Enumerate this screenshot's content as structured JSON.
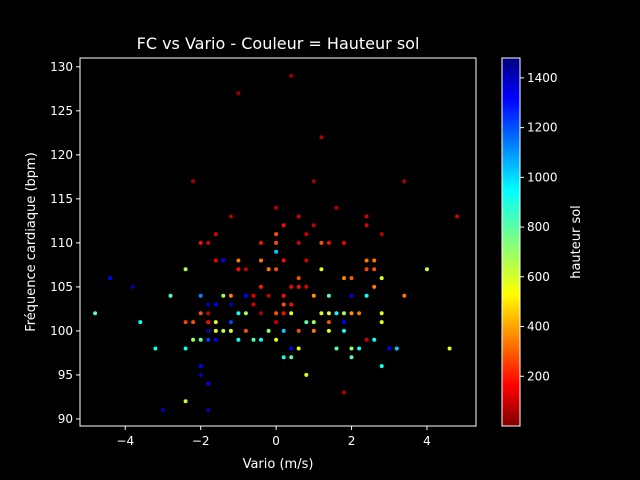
{
  "chart_data": {
    "type": "scatter",
    "title": "FC vs Vario - Couleur = Hauteur sol",
    "xlabel": "Vario (m/s)",
    "ylabel": "Fréquence cardiaque (bpm)",
    "colorbar_label": "hauteur sol",
    "colormap": "jet",
    "xlim": [
      -5.2,
      5.3
    ],
    "ylim": [
      89.2,
      131.0
    ],
    "clim": [
      0,
      1480
    ],
    "x_ticks": [
      -4,
      -2,
      0,
      2,
      4
    ],
    "x_tick_labels": [
      "−4",
      "−2",
      "0",
      "2",
      "4"
    ],
    "y_ticks": [
      90,
      95,
      100,
      105,
      110,
      115,
      120,
      125,
      130
    ],
    "y_tick_labels": [
      "90",
      "95",
      "100",
      "105",
      "110",
      "115",
      "120",
      "125",
      "130"
    ],
    "c_ticks": [
      200,
      400,
      600,
      800,
      1000,
      1200,
      1400
    ],
    "c_tick_labels": [
      "200",
      "400",
      "600",
      "800",
      "1000",
      "1200",
      "1400"
    ],
    "background": "#000000",
    "grid": false,
    "points": [
      {
        "x": 0.4,
        "y": 129,
        "c": 40
      },
      {
        "x": -1.0,
        "y": 127,
        "c": 40
      },
      {
        "x": 1.2,
        "y": 122,
        "c": 60
      },
      {
        "x": -2.2,
        "y": 117,
        "c": 60
      },
      {
        "x": 1.0,
        "y": 117,
        "c": 60
      },
      {
        "x": 3.4,
        "y": 117,
        "c": 60
      },
      {
        "x": 0.0,
        "y": 114,
        "c": 80
      },
      {
        "x": 1.6,
        "y": 114,
        "c": 80
      },
      {
        "x": -1.2,
        "y": 113,
        "c": 80
      },
      {
        "x": 0.6,
        "y": 113,
        "c": 120
      },
      {
        "x": 2.4,
        "y": 113,
        "c": 120
      },
      {
        "x": 4.8,
        "y": 113,
        "c": 120
      },
      {
        "x": 0.2,
        "y": 112,
        "c": 200
      },
      {
        "x": 1.0,
        "y": 112,
        "c": 100
      },
      {
        "x": 2.4,
        "y": 112,
        "c": 140
      },
      {
        "x": -1.6,
        "y": 111,
        "c": 120
      },
      {
        "x": 0.0,
        "y": 111,
        "c": 300
      },
      {
        "x": 0.8,
        "y": 111,
        "c": 100
      },
      {
        "x": 2.8,
        "y": 111,
        "c": 80
      },
      {
        "x": -2.0,
        "y": 110,
        "c": 200
      },
      {
        "x": -1.8,
        "y": 110,
        "c": 120
      },
      {
        "x": -0.4,
        "y": 110,
        "c": 200
      },
      {
        "x": 0.0,
        "y": 110,
        "c": 300
      },
      {
        "x": 0.6,
        "y": 110,
        "c": 120
      },
      {
        "x": 1.2,
        "y": 110,
        "c": 300
      },
      {
        "x": 1.4,
        "y": 110,
        "c": 200
      },
      {
        "x": 1.8,
        "y": 110,
        "c": 160
      },
      {
        "x": 0.0,
        "y": 109,
        "c": 1000
      },
      {
        "x": -1.0,
        "y": 108,
        "c": 360
      },
      {
        "x": -0.4,
        "y": 108,
        "c": 360
      },
      {
        "x": 0.2,
        "y": 108,
        "c": 200
      },
      {
        "x": 0.8,
        "y": 108,
        "c": 120
      },
      {
        "x": 2.4,
        "y": 108,
        "c": 360
      },
      {
        "x": 2.6,
        "y": 108,
        "c": 360
      },
      {
        "x": -1.6,
        "y": 108,
        "c": 160
      },
      {
        "x": -1.4,
        "y": 108,
        "c": 1300
      },
      {
        "x": -2.4,
        "y": 107,
        "c": 680
      },
      {
        "x": -1.0,
        "y": 107,
        "c": 200
      },
      {
        "x": -0.8,
        "y": 107,
        "c": 100
      },
      {
        "x": -0.2,
        "y": 107,
        "c": 360
      },
      {
        "x": 0.0,
        "y": 107,
        "c": 300
      },
      {
        "x": 1.2,
        "y": 107,
        "c": 600
      },
      {
        "x": 2.4,
        "y": 107,
        "c": 280
      },
      {
        "x": 2.6,
        "y": 107,
        "c": 300
      },
      {
        "x": 4.0,
        "y": 107,
        "c": 640
      },
      {
        "x": -4.4,
        "y": 106,
        "c": 1300
      },
      {
        "x": 0.6,
        "y": 106,
        "c": 300
      },
      {
        "x": 1.8,
        "y": 106,
        "c": 380
      },
      {
        "x": 2.0,
        "y": 106,
        "c": 320
      },
      {
        "x": 2.8,
        "y": 106,
        "c": 600
      },
      {
        "x": -3.8,
        "y": 105,
        "c": 1400
      },
      {
        "x": -0.4,
        "y": 105,
        "c": 220
      },
      {
        "x": 0.4,
        "y": 105,
        "c": 180
      },
      {
        "x": 0.6,
        "y": 105,
        "c": 200
      },
      {
        "x": 0.8,
        "y": 105,
        "c": 140
      },
      {
        "x": 2.6,
        "y": 105,
        "c": 360
      },
      {
        "x": -2.8,
        "y": 104,
        "c": 800
      },
      {
        "x": -2.0,
        "y": 104,
        "c": 1100
      },
      {
        "x": -1.4,
        "y": 104,
        "c": 700
      },
      {
        "x": -1.2,
        "y": 104,
        "c": 360
      },
      {
        "x": -0.8,
        "y": 104,
        "c": 1300
      },
      {
        "x": -0.6,
        "y": 104,
        "c": 160
      },
      {
        "x": -0.2,
        "y": 104,
        "c": 100
      },
      {
        "x": 0.2,
        "y": 104,
        "c": 200
      },
      {
        "x": 1.0,
        "y": 104,
        "c": 400
      },
      {
        "x": 1.4,
        "y": 104,
        "c": 800
      },
      {
        "x": 2.0,
        "y": 104,
        "c": 1300
      },
      {
        "x": 2.4,
        "y": 104,
        "c": 900
      },
      {
        "x": 3.4,
        "y": 104,
        "c": 360
      },
      {
        "x": -1.8,
        "y": 103,
        "c": 1400
      },
      {
        "x": -1.6,
        "y": 103,
        "c": 1300
      },
      {
        "x": -1.2,
        "y": 103,
        "c": 1400
      },
      {
        "x": -0.6,
        "y": 103,
        "c": 120
      },
      {
        "x": 0.2,
        "y": 103,
        "c": 300
      },
      {
        "x": 0.4,
        "y": 103,
        "c": 200
      },
      {
        "x": -4.8,
        "y": 102,
        "c": 800
      },
      {
        "x": -2.0,
        "y": 102,
        "c": 300
      },
      {
        "x": -1.8,
        "y": 102,
        "c": 100
      },
      {
        "x": -1.0,
        "y": 102,
        "c": 900
      },
      {
        "x": -0.8,
        "y": 102,
        "c": 700
      },
      {
        "x": -0.4,
        "y": 102,
        "c": 60
      },
      {
        "x": 0.0,
        "y": 102,
        "c": 300
      },
      {
        "x": 0.2,
        "y": 102,
        "c": 200
      },
      {
        "x": 0.4,
        "y": 102,
        "c": 600
      },
      {
        "x": 1.2,
        "y": 102,
        "c": 600
      },
      {
        "x": 1.4,
        "y": 102,
        "c": 600
      },
      {
        "x": 1.6,
        "y": 102,
        "c": 900
      },
      {
        "x": 1.8,
        "y": 102,
        "c": 700
      },
      {
        "x": 2.0,
        "y": 102,
        "c": 400
      },
      {
        "x": 2.2,
        "y": 102,
        "c": 360
      },
      {
        "x": 2.8,
        "y": 102,
        "c": 600
      },
      {
        "x": -2.4,
        "y": 101,
        "c": 280
      },
      {
        "x": -2.2,
        "y": 101,
        "c": 300
      },
      {
        "x": -1.8,
        "y": 101,
        "c": 200
      },
      {
        "x": -1.6,
        "y": 101,
        "c": 620
      },
      {
        "x": -3.6,
        "y": 101,
        "c": 900
      },
      {
        "x": -1.2,
        "y": 101,
        "c": 1200
      },
      {
        "x": 0.0,
        "y": 101,
        "c": 100
      },
      {
        "x": 0.8,
        "y": 101,
        "c": 800
      },
      {
        "x": 1.0,
        "y": 101,
        "c": 700
      },
      {
        "x": 1.4,
        "y": 101,
        "c": 300
      },
      {
        "x": 1.8,
        "y": 101,
        "c": 1300
      },
      {
        "x": 2.8,
        "y": 101,
        "c": 600
      },
      {
        "x": -1.6,
        "y": 100,
        "c": 600
      },
      {
        "x": -1.4,
        "y": 100,
        "c": 640
      },
      {
        "x": -1.2,
        "y": 100,
        "c": 600
      },
      {
        "x": -0.8,
        "y": 100,
        "c": 300
      },
      {
        "x": -0.2,
        "y": 100,
        "c": 700
      },
      {
        "x": 0.2,
        "y": 100,
        "c": 1000
      },
      {
        "x": 0.6,
        "y": 100,
        "c": 300
      },
      {
        "x": 1.0,
        "y": 100,
        "c": 360
      },
      {
        "x": 1.4,
        "y": 100,
        "c": 600
      },
      {
        "x": 1.8,
        "y": 100,
        "c": 900
      },
      {
        "x": -1.8,
        "y": 100,
        "c": 1400
      },
      {
        "x": -2.2,
        "y": 99,
        "c": 700
      },
      {
        "x": -2.0,
        "y": 99,
        "c": 800
      },
      {
        "x": -1.8,
        "y": 99,
        "c": 1200
      },
      {
        "x": -1.6,
        "y": 99,
        "c": 1300
      },
      {
        "x": -1.0,
        "y": 99,
        "c": 900
      },
      {
        "x": -0.6,
        "y": 99,
        "c": 800
      },
      {
        "x": -0.4,
        "y": 99,
        "c": 900
      },
      {
        "x": 0.0,
        "y": 99,
        "c": 600
      },
      {
        "x": 2.4,
        "y": 99,
        "c": 100
      },
      {
        "x": 2.6,
        "y": 99,
        "c": 900
      },
      {
        "x": -3.2,
        "y": 98,
        "c": 900
      },
      {
        "x": -2.4,
        "y": 98,
        "c": 900
      },
      {
        "x": 0.4,
        "y": 98,
        "c": 1300
      },
      {
        "x": 0.6,
        "y": 98,
        "c": 600
      },
      {
        "x": 1.6,
        "y": 98,
        "c": 800
      },
      {
        "x": 2.0,
        "y": 98,
        "c": 700
      },
      {
        "x": 2.2,
        "y": 98,
        "c": 900
      },
      {
        "x": 3.0,
        "y": 98,
        "c": 1300
      },
      {
        "x": 3.2,
        "y": 98,
        "c": 1000
      },
      {
        "x": 4.6,
        "y": 98,
        "c": 600
      },
      {
        "x": 0.2,
        "y": 97,
        "c": 900
      },
      {
        "x": 0.4,
        "y": 97,
        "c": 800
      },
      {
        "x": 2.0,
        "y": 97,
        "c": 800
      },
      {
        "x": -2.0,
        "y": 96,
        "c": 1300
      },
      {
        "x": 2.8,
        "y": 96,
        "c": 900
      },
      {
        "x": -2.0,
        "y": 95,
        "c": 1400
      },
      {
        "x": 0.8,
        "y": 95,
        "c": 600
      },
      {
        "x": -1.8,
        "y": 94,
        "c": 1300
      },
      {
        "x": 1.8,
        "y": 93,
        "c": 80
      },
      {
        "x": -2.4,
        "y": 92,
        "c": 640
      },
      {
        "x": -3.0,
        "y": 91,
        "c": 1400
      },
      {
        "x": -1.8,
        "y": 91,
        "c": 1400
      }
    ]
  }
}
